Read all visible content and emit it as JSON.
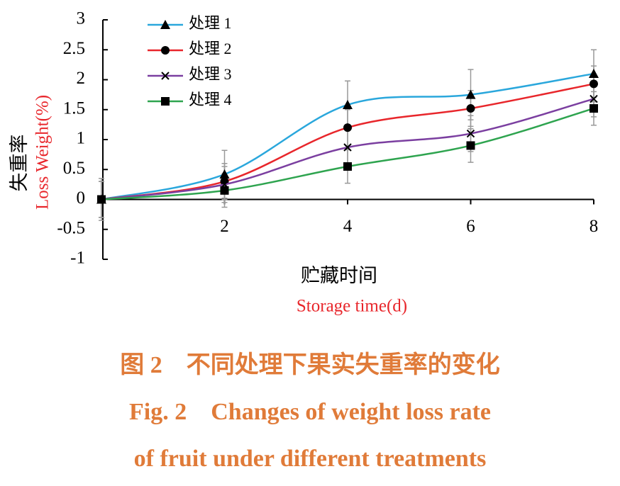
{
  "chart_data": {
    "type": "line",
    "y_label": "失重率",
    "y_label_en": "Loss Weight(%)",
    "x_label": "贮藏时间",
    "x_label_en": "Storage time(d)",
    "x": [
      0,
      2,
      4,
      6,
      8
    ],
    "xlim": [
      0,
      8
    ],
    "xticks": [
      2,
      4,
      6,
      8
    ],
    "ylim": [
      -1,
      3
    ],
    "yticks": [
      -1,
      -0.5,
      0,
      0.5,
      1,
      1.5,
      2,
      2.5,
      3
    ],
    "series": [
      {
        "name": "处理 1",
        "color": "#2aa7dc",
        "marker": "triangle",
        "values": [
          0,
          0.42,
          1.58,
          1.75,
          2.1
        ],
        "errors": [
          0.35,
          0.4,
          0.4,
          0.42,
          0.4
        ]
      },
      {
        "name": "处理 2",
        "color": "#e8262b",
        "marker": "circle",
        "values": [
          0,
          0.3,
          1.2,
          1.52,
          1.93
        ],
        "errors": [
          0.3,
          0.3,
          0.3,
          0.3,
          0.3
        ]
      },
      {
        "name": "处理 3",
        "color": "#7b3fa0",
        "marker": "cross",
        "values": [
          0,
          0.25,
          0.87,
          1.1,
          1.68
        ],
        "errors": [
          0.3,
          0.3,
          0.3,
          0.3,
          0.3
        ]
      },
      {
        "name": "处理 4",
        "color": "#2ea44f",
        "marker": "square",
        "values": [
          0,
          0.15,
          0.55,
          0.9,
          1.52
        ],
        "errors": [
          0.3,
          0.28,
          0.28,
          0.28,
          0.28
        ]
      }
    ]
  },
  "caption": {
    "cn": "图 2　不同处理下果实失重率的变化",
    "en1": "Fig. 2　Changes of weight loss rate",
    "en2": "of fruit under different treatments"
  }
}
